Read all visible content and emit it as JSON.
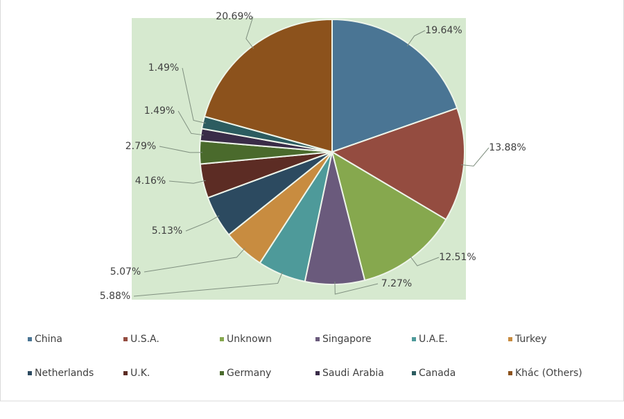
{
  "chart_data": {
    "type": "pie",
    "categories": [
      "China",
      "U.S.A.",
      "Unknown",
      "Singapore",
      "U.A.E.",
      "Turkey",
      "Netherlands",
      "U.K.",
      "Germany",
      "Saudi Arabia",
      "Canada",
      "Khác (Others)"
    ],
    "values": [
      19.64,
      13.88,
      12.51,
      7.27,
      5.88,
      5.07,
      5.13,
      4.16,
      2.79,
      1.49,
      1.49,
      20.69
    ],
    "value_labels": [
      "19.64%",
      "13.88%",
      "12.51%",
      "7.27%",
      "5.88%",
      "5.07%",
      "5.13%",
      "4.16%",
      "2.79%",
      "1.49%",
      "1.49%",
      "20.69%"
    ],
    "colors": [
      "#4a7594",
      "#944c40",
      "#86a84e",
      "#6a5a7c",
      "#4e9a9a",
      "#c88c40",
      "#2c4a60",
      "#5c2c24",
      "#4a6a2c",
      "#3a2c48",
      "#2c5c60",
      "#8c521c"
    ],
    "legend": "bottom"
  }
}
